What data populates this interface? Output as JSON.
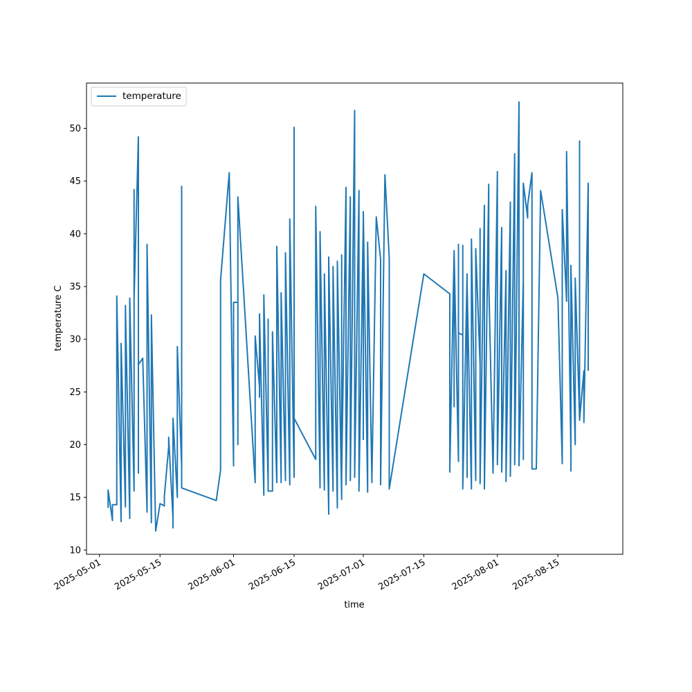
{
  "chart_data": {
    "type": "line",
    "xlabel": "time",
    "ylabel": "temperature C",
    "x_axis_type": "date",
    "xlim": [
      "2025-04-28",
      "2025-08-30"
    ],
    "ylim": [
      9.6,
      54.3
    ],
    "x_ticks": [
      "2025-05-01",
      "2025-05-15",
      "2025-06-01",
      "2025-06-15",
      "2025-07-01",
      "2025-07-15",
      "2025-08-01",
      "2025-08-15"
    ],
    "y_ticks": [
      10,
      15,
      20,
      25,
      30,
      35,
      40,
      45,
      50
    ],
    "grid": false,
    "legend": {
      "position": "top-left",
      "entries": [
        "temperature"
      ]
    },
    "series": [
      {
        "name": "temperature",
        "color": "#1f77b4",
        "points": [
          [
            "2025-05-03",
            14.0
          ],
          [
            "2025-05-03",
            15.7
          ],
          [
            "2025-05-04",
            12.8
          ],
          [
            "2025-05-04",
            14.3
          ],
          [
            "2025-05-05",
            14.3
          ],
          [
            "2025-05-05",
            34.1
          ],
          [
            "2025-05-06",
            12.7
          ],
          [
            "2025-05-06",
            29.6
          ],
          [
            "2025-05-07",
            14.1
          ],
          [
            "2025-05-07",
            33.2
          ],
          [
            "2025-05-08",
            13.0
          ],
          [
            "2025-05-08",
            33.9
          ],
          [
            "2025-05-09",
            15.6
          ],
          [
            "2025-05-09",
            44.2
          ],
          [
            "2025-05-09",
            33.8
          ],
          [
            "2025-05-10",
            49.2
          ],
          [
            "2025-05-10",
            17.3
          ],
          [
            "2025-05-10",
            27.6
          ],
          [
            "2025-05-11",
            28.2
          ],
          [
            "2025-05-12",
            13.6
          ],
          [
            "2025-05-12",
            39.0
          ],
          [
            "2025-05-13",
            12.6
          ],
          [
            "2025-05-13",
            32.3
          ],
          [
            "2025-05-14",
            11.8
          ],
          [
            "2025-05-15",
            14.4
          ],
          [
            "2025-05-16",
            14.2
          ],
          [
            "2025-05-16",
            15.1
          ],
          [
            "2025-05-17",
            19.8
          ],
          [
            "2025-05-17",
            20.7
          ],
          [
            "2025-05-18",
            13.0
          ],
          [
            "2025-05-18",
            12.1
          ],
          [
            "2025-05-18",
            22.5
          ],
          [
            "2025-05-19",
            15.0
          ],
          [
            "2025-05-19",
            29.3
          ],
          [
            "2025-05-20",
            17.9
          ],
          [
            "2025-05-20",
            44.5
          ],
          [
            "2025-05-20",
            15.9
          ],
          [
            "2025-05-28",
            14.7
          ],
          [
            "2025-05-29",
            17.6
          ],
          [
            "2025-05-29",
            35.6
          ],
          [
            "2025-05-31",
            45.8
          ],
          [
            "2025-06-01",
            18.0
          ],
          [
            "2025-06-01",
            33.5
          ],
          [
            "2025-06-02",
            33.5
          ],
          [
            "2025-06-02",
            20.0
          ],
          [
            "2025-06-02",
            43.5
          ],
          [
            "2025-06-06",
            16.4
          ],
          [
            "2025-06-06",
            30.3
          ],
          [
            "2025-06-07",
            25.5
          ],
          [
            "2025-06-07",
            24.5
          ],
          [
            "2025-06-07",
            32.4
          ],
          [
            "2025-06-08",
            15.2
          ],
          [
            "2025-06-08",
            34.2
          ],
          [
            "2025-06-09",
            16.2
          ],
          [
            "2025-06-09",
            31.9
          ],
          [
            "2025-06-09",
            15.6
          ],
          [
            "2025-06-10",
            15.6
          ],
          [
            "2025-06-10",
            30.7
          ],
          [
            "2025-06-11",
            16.4
          ],
          [
            "2025-06-11",
            38.8
          ],
          [
            "2025-06-12",
            16.7
          ],
          [
            "2025-06-12",
            16.4
          ],
          [
            "2025-06-12",
            34.4
          ],
          [
            "2025-06-13",
            16.6
          ],
          [
            "2025-06-13",
            38.2
          ],
          [
            "2025-06-14",
            16.2
          ],
          [
            "2025-06-14",
            41.4
          ],
          [
            "2025-06-15",
            16.9
          ],
          [
            "2025-06-15",
            50.1
          ],
          [
            "2025-06-15",
            22.5
          ],
          [
            "2025-06-20",
            18.6
          ],
          [
            "2025-06-20",
            42.6
          ],
          [
            "2025-06-21",
            15.9
          ],
          [
            "2025-06-21",
            40.2
          ],
          [
            "2025-06-22",
            15.7
          ],
          [
            "2025-06-22",
            36.2
          ],
          [
            "2025-06-23",
            13.6
          ],
          [
            "2025-06-23",
            13.4
          ],
          [
            "2025-06-23",
            37.8
          ],
          [
            "2025-06-24",
            15.6
          ],
          [
            "2025-06-24",
            15.8
          ],
          [
            "2025-06-24",
            36.9
          ],
          [
            "2025-06-25",
            14.0
          ],
          [
            "2025-06-25",
            37.4
          ],
          [
            "2025-06-26",
            14.8
          ],
          [
            "2025-06-26",
            38.0
          ],
          [
            "2025-06-26",
            17.2
          ],
          [
            "2025-06-27",
            44.4
          ],
          [
            "2025-06-27",
            16.2
          ],
          [
            "2025-06-28",
            43.5
          ],
          [
            "2025-06-28",
            16.6
          ],
          [
            "2025-06-29",
            51.7
          ],
          [
            "2025-06-29",
            16.9
          ],
          [
            "2025-06-30",
            44.1
          ],
          [
            "2025-06-30",
            15.6
          ],
          [
            "2025-07-01",
            41.1
          ],
          [
            "2025-07-01",
            20.5
          ],
          [
            "2025-07-01",
            42.1
          ],
          [
            "2025-07-02",
            15.5
          ],
          [
            "2025-07-02",
            39.2
          ],
          [
            "2025-07-03",
            16.4
          ],
          [
            "2025-07-03",
            17.0
          ],
          [
            "2025-07-04",
            41.6
          ],
          [
            "2025-07-05",
            37.6
          ],
          [
            "2025-07-05",
            16.2
          ],
          [
            "2025-07-06",
            45.6
          ],
          [
            "2025-07-07",
            37.7
          ],
          [
            "2025-07-07",
            15.8
          ],
          [
            "2025-07-15",
            36.2
          ],
          [
            "2025-07-21",
            34.3
          ],
          [
            "2025-07-21",
            17.4
          ],
          [
            "2025-07-21",
            17.6
          ],
          [
            "2025-07-22",
            38.4
          ],
          [
            "2025-07-22",
            23.6
          ],
          [
            "2025-07-22",
            38.2
          ],
          [
            "2025-07-23",
            18.4
          ],
          [
            "2025-07-23",
            39.0
          ],
          [
            "2025-07-23",
            30.6
          ],
          [
            "2025-07-24",
            30.4
          ],
          [
            "2025-07-24",
            38.9
          ],
          [
            "2025-07-24",
            16.8
          ],
          [
            "2025-07-24",
            15.8
          ],
          [
            "2025-07-25",
            36.2
          ],
          [
            "2025-07-25",
            16.9
          ],
          [
            "2025-07-25",
            35.2
          ],
          [
            "2025-07-26",
            15.8
          ],
          [
            "2025-07-26",
            39.5
          ],
          [
            "2025-07-27",
            16.6
          ],
          [
            "2025-07-27",
            38.6
          ],
          [
            "2025-07-28",
            27.6
          ],
          [
            "2025-07-28",
            40.5
          ],
          [
            "2025-07-28",
            16.3
          ],
          [
            "2025-07-29",
            42.7
          ],
          [
            "2025-07-29",
            15.8
          ],
          [
            "2025-07-30",
            44.7
          ],
          [
            "2025-07-30",
            35.6
          ],
          [
            "2025-07-31",
            17.3
          ],
          [
            "2025-08-01",
            45.9
          ],
          [
            "2025-08-01",
            18.1
          ],
          [
            "2025-08-02",
            40.6
          ],
          [
            "2025-08-02",
            17.4
          ],
          [
            "2025-08-03",
            36.5
          ],
          [
            "2025-08-03",
            16.5
          ],
          [
            "2025-08-04",
            43.0
          ],
          [
            "2025-08-04",
            17.0
          ],
          [
            "2025-08-05",
            47.6
          ],
          [
            "2025-08-05",
            18.5
          ],
          [
            "2025-08-05",
            18.1
          ],
          [
            "2025-08-06",
            52.5
          ],
          [
            "2025-08-06",
            22.3
          ],
          [
            "2025-08-06",
            18.0
          ],
          [
            "2025-08-07",
            35.7
          ],
          [
            "2025-08-07",
            18.6
          ],
          [
            "2025-08-07",
            44.8
          ],
          [
            "2025-08-08",
            41.5
          ],
          [
            "2025-08-08",
            42.7
          ],
          [
            "2025-08-09",
            45.8
          ],
          [
            "2025-08-09",
            18.5
          ],
          [
            "2025-08-09",
            17.7
          ],
          [
            "2025-08-10",
            17.7
          ],
          [
            "2025-08-11",
            44.1
          ],
          [
            "2025-08-15",
            33.9
          ],
          [
            "2025-08-16",
            18.2
          ],
          [
            "2025-08-16",
            42.3
          ],
          [
            "2025-08-17",
            33.6
          ],
          [
            "2025-08-17",
            47.8
          ],
          [
            "2025-08-18",
            19.2
          ],
          [
            "2025-08-18",
            17.5
          ],
          [
            "2025-08-18",
            37.0
          ],
          [
            "2025-08-19",
            20.0
          ],
          [
            "2025-08-19",
            35.8
          ],
          [
            "2025-08-20",
            22.6
          ],
          [
            "2025-08-20",
            48.8
          ],
          [
            "2025-08-20",
            22.3
          ],
          [
            "2025-08-21",
            27.0
          ],
          [
            "2025-08-21",
            22.1
          ],
          [
            "2025-08-22",
            44.8
          ],
          [
            "2025-08-22",
            27.0
          ]
        ]
      }
    ]
  }
}
